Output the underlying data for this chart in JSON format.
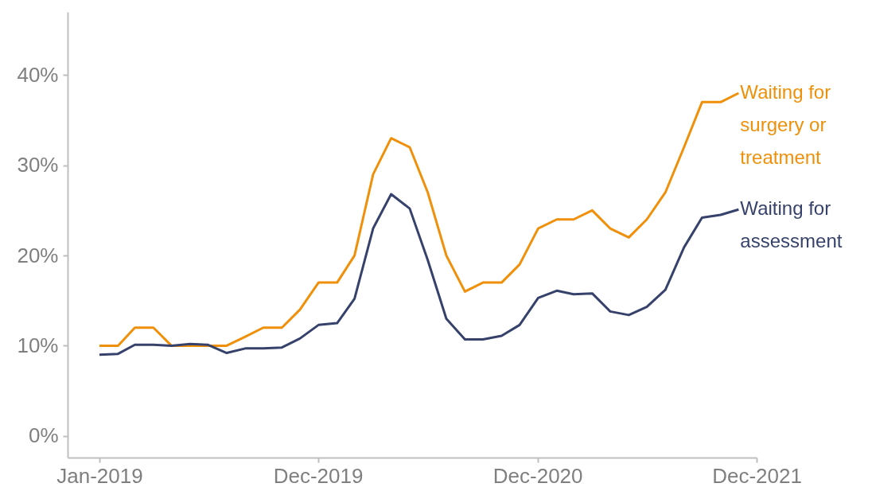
{
  "chart_data": {
    "type": "line",
    "x": [
      "2019-01",
      "2019-02",
      "2019-03",
      "2019-04",
      "2019-05",
      "2019-06",
      "2019-07",
      "2019-08",
      "2019-09",
      "2019-10",
      "2019-11",
      "2019-12",
      "2020-01",
      "2020-02",
      "2020-03",
      "2020-04",
      "2020-05",
      "2020-06",
      "2020-07",
      "2020-08",
      "2020-09",
      "2020-10",
      "2020-11",
      "2020-12",
      "2021-01",
      "2021-02",
      "2021-03",
      "2021-04",
      "2021-05",
      "2021-06",
      "2021-07",
      "2021-08",
      "2021-09",
      "2021-10",
      "2021-11",
      "2021-12"
    ],
    "xlim": [
      "2018-11-09",
      "2021-12-31"
    ],
    "xticks": [
      {
        "value": "2019-01",
        "label": "Jan-2019"
      },
      {
        "value": "2019-12-31",
        "label": "Dec-2019"
      },
      {
        "value": "2020-12-31",
        "label": "Dec-2020"
      },
      {
        "value": "2021-12-31",
        "label": "Dec-2021"
      }
    ],
    "ylim": [
      -2.4,
      47
    ],
    "yticks": [
      {
        "value": 0,
        "label": "0%"
      },
      {
        "value": 10,
        "label": "10%"
      },
      {
        "value": 20,
        "label": "20%"
      },
      {
        "value": 30,
        "label": "30%"
      },
      {
        "value": 40,
        "label": "40%"
      }
    ],
    "grid": false,
    "line_style": "solid",
    "series": [
      {
        "name": "Waiting for surgery or treatment",
        "color": "#f0900a",
        "values": [
          10,
          10,
          12,
          12,
          10,
          10,
          10,
          10,
          11,
          12,
          12,
          14,
          17,
          17,
          20,
          29,
          33,
          32,
          27,
          20,
          16,
          17,
          17,
          19,
          23,
          24,
          24,
          25,
          23,
          22,
          24,
          27,
          32,
          37,
          37,
          38
        ]
      },
      {
        "name": "Waiting for assessment",
        "color": "#36426b",
        "values": [
          9.0,
          9.1,
          10.1,
          10.1,
          10.0,
          10.2,
          10.1,
          9.2,
          9.7,
          9.7,
          9.8,
          10.8,
          12.3,
          12.5,
          15.2,
          23,
          26.8,
          25.2,
          19.5,
          13,
          10.7,
          10.7,
          11.1,
          12.3,
          15.3,
          16.1,
          15.7,
          15.8,
          13.8,
          13.4,
          14.3,
          16.2,
          20.9,
          24.2,
          24.5,
          25.1
        ]
      }
    ]
  }
}
